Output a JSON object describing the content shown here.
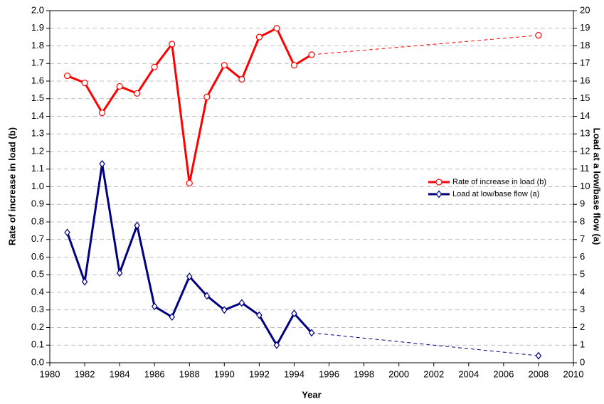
{
  "chart_data": {
    "type": "line",
    "x_label": "Year",
    "y_label": "Rate of increase in load (b)",
    "y2_label": "Load at a low/base flow (a)",
    "x": [
      1981,
      1982,
      1983,
      1984,
      1985,
      1986,
      1987,
      1988,
      1989,
      1990,
      1991,
      1992,
      1993,
      1994,
      1995,
      2008
    ],
    "series": [
      {
        "name": "Rate of increase in load (b)",
        "color": "#ff0000",
        "marker": "circle",
        "dash_last_segment": true,
        "values": [
          1.63,
          1.59,
          1.42,
          1.57,
          1.53,
          1.68,
          1.81,
          1.02,
          1.51,
          1.69,
          1.61,
          1.85,
          1.9,
          1.69,
          1.75,
          1.86
        ]
      },
      {
        "name": "Load at low/base flow (a)",
        "color": "#000080",
        "marker": "diamond",
        "axis": "y2",
        "dash_last_segment": true,
        "values": [
          7.4,
          4.6,
          11.3,
          5.1,
          7.8,
          3.2,
          2.6,
          4.9,
          3.8,
          3.0,
          3.4,
          2.7,
          1.0,
          2.8,
          1.7,
          0.4
        ]
      }
    ],
    "xlim": [
      1980,
      2010
    ],
    "xticks": [
      1980,
      1982,
      1984,
      1986,
      1988,
      1990,
      1992,
      1994,
      1996,
      1998,
      2000,
      2002,
      2004,
      2006,
      2008,
      2010
    ],
    "ylim": [
      0,
      2
    ],
    "yticks": [
      {
        "value": 0,
        "label": "0.0"
      },
      0.1,
      0.2,
      0.3,
      0.4,
      0.5,
      0.6,
      0.7,
      0.8,
      0.9,
      {
        "value": 1,
        "label": "1.0"
      },
      1.1,
      1.2,
      1.3,
      1.4,
      1.5,
      1.6,
      1.7,
      1.8,
      1.9,
      {
        "value": 2,
        "label": "2.0"
      }
    ],
    "y2lim": [
      0,
      20
    ],
    "y2ticks": [
      0,
      1,
      2,
      3,
      4,
      5,
      6,
      7,
      8,
      9,
      10,
      11,
      12,
      13,
      14,
      15,
      16,
      17,
      18,
      19,
      20
    ],
    "grid": true,
    "legend": "right"
  }
}
